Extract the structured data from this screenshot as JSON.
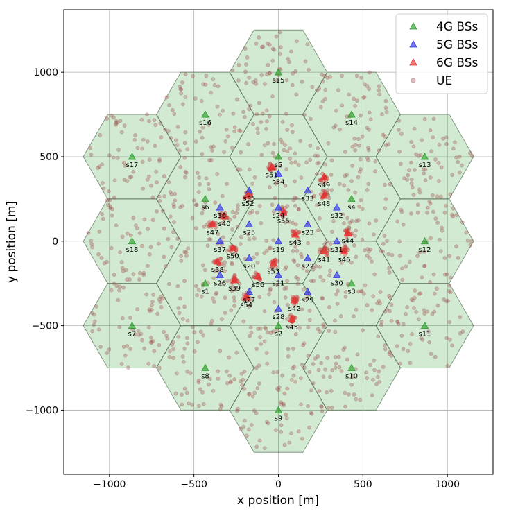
{
  "chart_data": {
    "type": "scatter",
    "title": "",
    "xlabel": "x position [m]",
    "ylabel": "y position [m]",
    "xlim": [
      -1270,
      1270
    ],
    "ylim": [
      -1380,
      1370
    ],
    "xticks": [
      -1000,
      -500,
      0,
      500,
      1000
    ],
    "yticks": [
      -1000,
      -500,
      0,
      500,
      1000
    ],
    "xtick_labels": [
      "−1000",
      "−500",
      "0",
      "500",
      "1000"
    ],
    "ytick_labels": [
      "−1000",
      "−500",
      "0",
      "500",
      "1000"
    ],
    "grid": true,
    "legend_position": "top-right",
    "cell_radius": 288.7,
    "colors": {
      "cell_fill": "#2ca02c",
      "g4": "#2ca02c",
      "g5": "#3333ee",
      "g6": "#ee3333",
      "ue": "#a05050"
    },
    "legend": [
      {
        "label": "4G BSs",
        "key": "g4"
      },
      {
        "label": "5G BSs",
        "key": "g5"
      },
      {
        "label": "6G BSs",
        "key": "g6"
      },
      {
        "label": "UE",
        "key": "ue"
      }
    ],
    "series": [
      {
        "name": "4G BSs",
        "key": "g4",
        "points": [
          {
            "label": "s1",
            "x": -433,
            "y": -250
          },
          {
            "label": "s2",
            "x": 0,
            "y": -500
          },
          {
            "label": "s3",
            "x": 433,
            "y": -250
          },
          {
            "label": "s4",
            "x": 433,
            "y": 250
          },
          {
            "label": "s5",
            "x": 0,
            "y": 500
          },
          {
            "label": "s6",
            "x": -433,
            "y": 250
          },
          {
            "label": "s7",
            "x": -866,
            "y": -500
          },
          {
            "label": "s8",
            "x": -433,
            "y": -750
          },
          {
            "label": "s9",
            "x": 0,
            "y": -1000
          },
          {
            "label": "s10",
            "x": 433,
            "y": -750
          },
          {
            "label": "s11",
            "x": 866,
            "y": -500
          },
          {
            "label": "s12",
            "x": 866,
            "y": 0
          },
          {
            "label": "s13",
            "x": 866,
            "y": 500
          },
          {
            "label": "s14",
            "x": 433,
            "y": 750
          },
          {
            "label": "s15",
            "x": 0,
            "y": 1000
          },
          {
            "label": "s16",
            "x": -433,
            "y": 750
          },
          {
            "label": "s17",
            "x": -866,
            "y": 500
          },
          {
            "label": "s18",
            "x": -866,
            "y": 0
          }
        ]
      },
      {
        "name": "5G BSs",
        "key": "g5",
        "points": [
          {
            "label": "s19",
            "x": 0,
            "y": 0
          },
          {
            "label": "s20",
            "x": -173,
            "y": -100
          },
          {
            "label": "s21",
            "x": 0,
            "y": -200
          },
          {
            "label": "s22",
            "x": 173,
            "y": -100
          },
          {
            "label": "s23",
            "x": 173,
            "y": 100
          },
          {
            "label": "s24",
            "x": 0,
            "y": 200
          },
          {
            "label": "s25",
            "x": -173,
            "y": 100
          },
          {
            "label": "s26",
            "x": -346,
            "y": -200
          },
          {
            "label": "s27",
            "x": -173,
            "y": -300
          },
          {
            "label": "s28",
            "x": 0,
            "y": -400
          },
          {
            "label": "s29",
            "x": 173,
            "y": -300
          },
          {
            "label": "s30",
            "x": 346,
            "y": -200
          },
          {
            "label": "s31",
            "x": 346,
            "y": 0
          },
          {
            "label": "s32",
            "x": 346,
            "y": 200
          },
          {
            "label": "s33",
            "x": 173,
            "y": 300
          },
          {
            "label": "s34",
            "x": 0,
            "y": 400
          },
          {
            "label": "s35",
            "x": -173,
            "y": 300
          },
          {
            "label": "s36",
            "x": -346,
            "y": 200
          },
          {
            "label": "s37",
            "x": -346,
            "y": 0
          }
        ]
      },
      {
        "name": "6G BSs",
        "key": "g6",
        "points": [
          {
            "label": "s38",
            "x": -360,
            "y": -120
          },
          {
            "label": "s39",
            "x": -260,
            "y": -230
          },
          {
            "label": "s40",
            "x": -320,
            "y": 150
          },
          {
            "label": "s41",
            "x": 270,
            "y": -60
          },
          {
            "label": "s42",
            "x": 95,
            "y": -350
          },
          {
            "label": "s43",
            "x": 100,
            "y": 40
          },
          {
            "label": "s44",
            "x": 410,
            "y": 50
          },
          {
            "label": "s45",
            "x": 80,
            "y": -460
          },
          {
            "label": "s46",
            "x": 390,
            "y": -60
          },
          {
            "label": "s47",
            "x": -390,
            "y": 100
          },
          {
            "label": "s48",
            "x": 270,
            "y": 270
          },
          {
            "label": "s49",
            "x": 270,
            "y": 380
          },
          {
            "label": "s50",
            "x": -270,
            "y": -40
          },
          {
            "label": "s51",
            "x": -40,
            "y": 440
          },
          {
            "label": "s52",
            "x": -180,
            "y": 270
          },
          {
            "label": "s53",
            "x": -30,
            "y": -130
          },
          {
            "label": "s54",
            "x": -190,
            "y": -330
          },
          {
            "label": "s55",
            "x": 30,
            "y": 170
          },
          {
            "label": "s56",
            "x": -120,
            "y": -210
          }
        ]
      }
    ]
  }
}
